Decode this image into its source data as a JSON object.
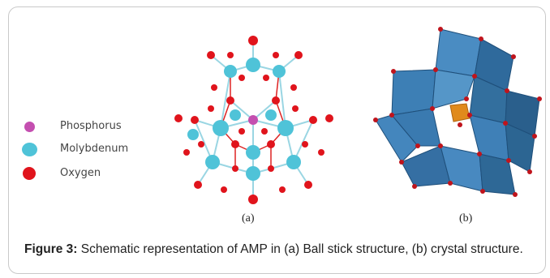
{
  "legend": {
    "items": [
      {
        "label": "Phosphorus",
        "color": "#c44fb0"
      },
      {
        "label": "Molybdenum",
        "color": "#4fc3d8"
      },
      {
        "label": "Oxygen",
        "color": "#e0141c"
      }
    ]
  },
  "panels": {
    "a_label": "(a)",
    "b_label": "(b)"
  },
  "caption": {
    "prefix": "Figure 3:",
    "text": " Schematic representation of AMP in (a) Ball stick structure, (b) crystal structure."
  },
  "colors": {
    "polyhedra": "#3d7fb5",
    "polyhedra_dark": "#1f4f7a",
    "bond": "#9ad6e3",
    "phosphorus_center": "#e08a1c"
  }
}
